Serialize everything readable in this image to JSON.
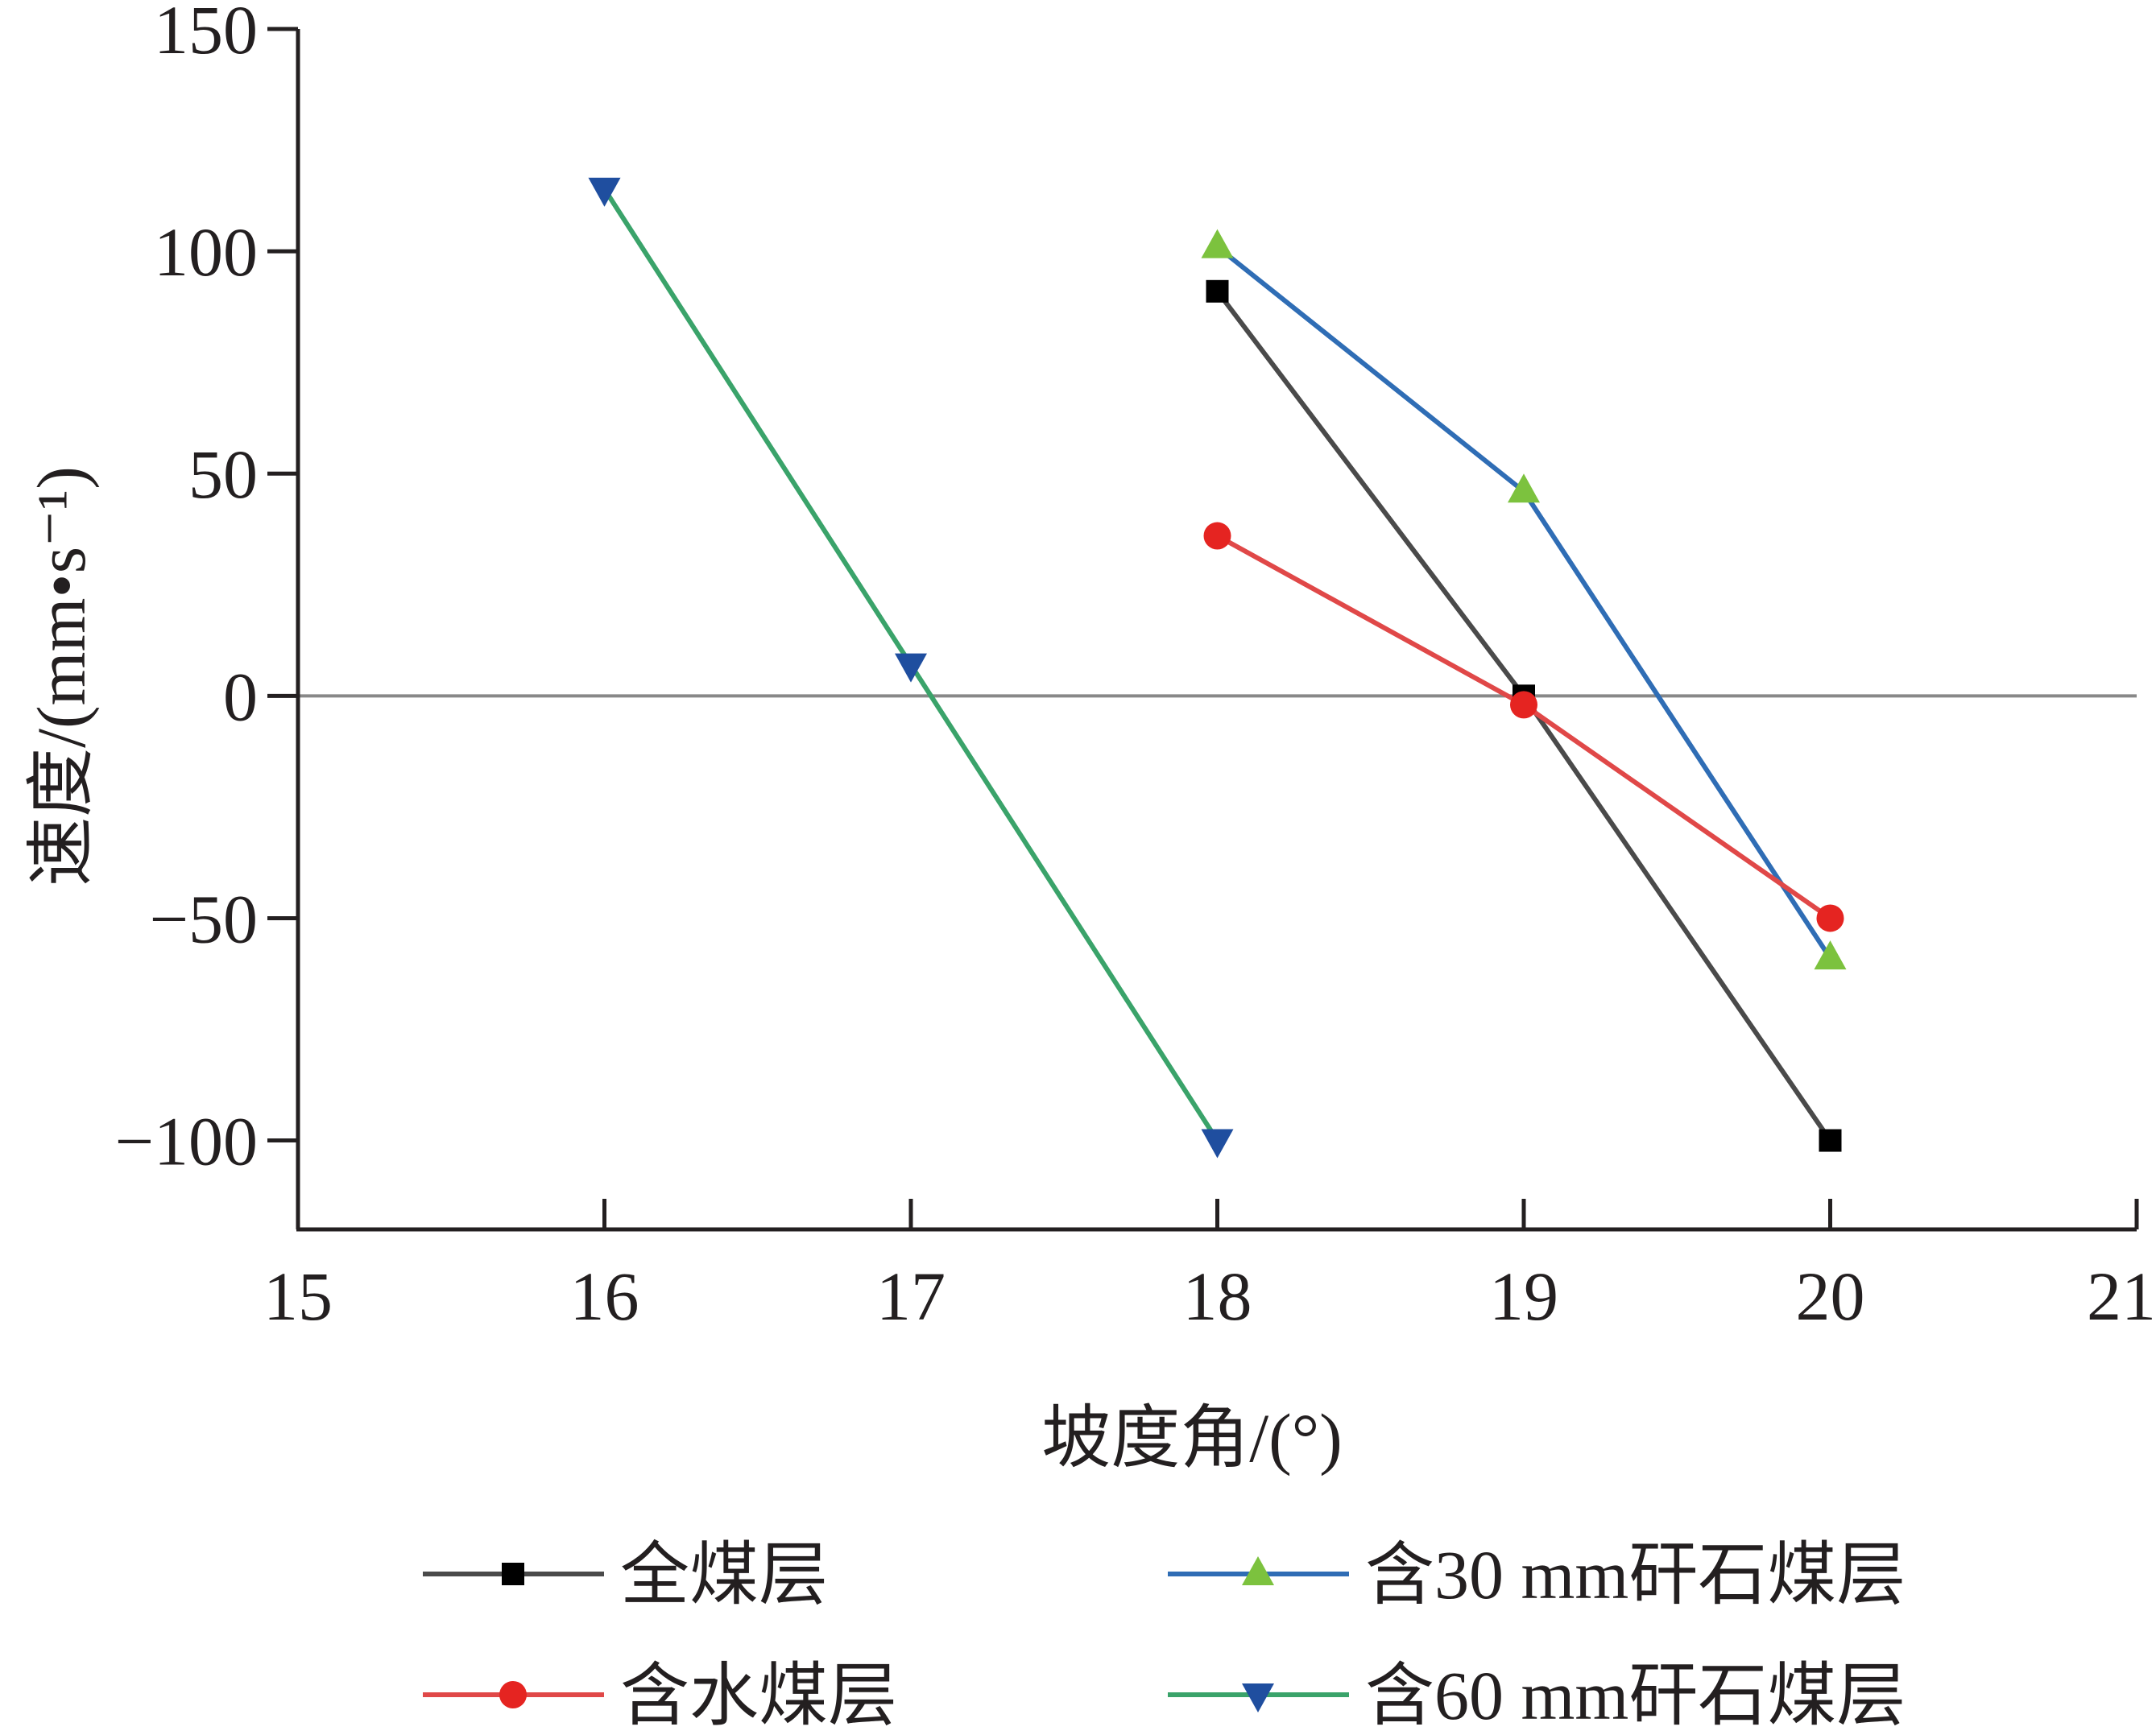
{
  "chart_data": {
    "type": "line",
    "xlabel": "坡度角/(°)",
    "ylabel": "速度/(mm•s⁻¹)",
    "xlim": [
      15,
      21
    ],
    "ylim": [
      -120,
      150
    ],
    "x_ticks": [
      "15",
      "16",
      "17",
      "18",
      "19",
      "20",
      "21"
    ],
    "y_ticks": [
      "150",
      "100",
      "50",
      "0",
      "−50",
      "−100"
    ],
    "y_tick_values": [
      150,
      100,
      50,
      0,
      -50,
      -100
    ],
    "x_tick_values": [
      15,
      16,
      17,
      18,
      19,
      20,
      21
    ],
    "zero_line": true,
    "grid": false,
    "legend_position": "bottom",
    "series": [
      {
        "name": "全煤层",
        "color": "#4a4a4a",
        "marker": "square",
        "marker_color": "#000000",
        "x": [
          18,
          19,
          20
        ],
        "y": [
          91,
          0,
          -100
        ]
      },
      {
        "name": "含30 mm矸石煤层",
        "color": "#2f6db5",
        "marker": "triangle-up",
        "marker_color": "#7cc23e",
        "x": [
          18,
          19,
          20
        ],
        "y": [
          101,
          46,
          -59
        ]
      },
      {
        "name": "含水煤层",
        "color": "#e04848",
        "marker": "circle",
        "marker_color": "#e52421",
        "x": [
          18,
          19,
          20
        ],
        "y": [
          36,
          -2,
          -50
        ]
      },
      {
        "name": "含60 mm矸石煤层",
        "color": "#3aa36a",
        "marker": "triangle-down",
        "marker_color": "#1f4e9f",
        "x": [
          16,
          17,
          18
        ],
        "y": [
          114,
          7,
          -100
        ]
      }
    ]
  }
}
